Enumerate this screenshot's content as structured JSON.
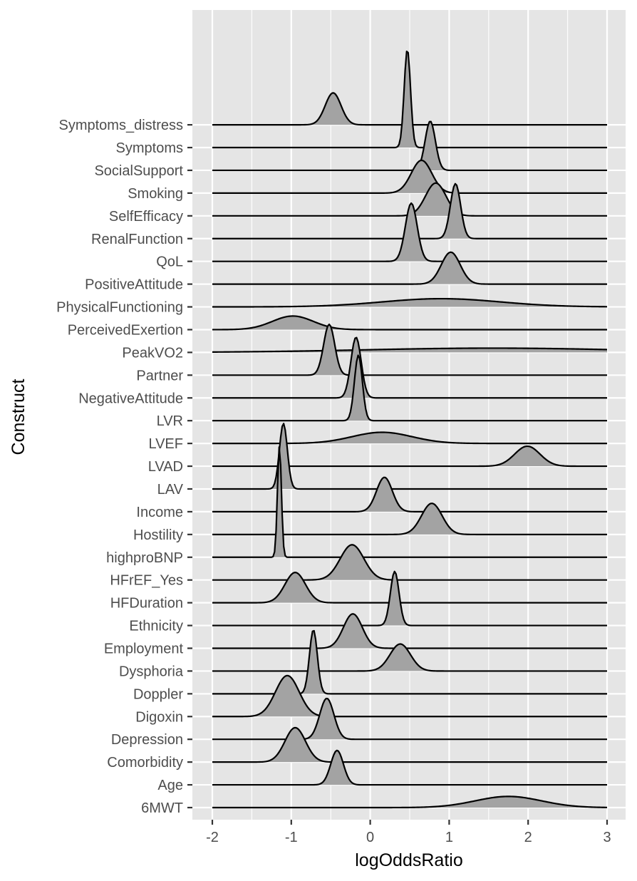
{
  "chart_data": {
    "type": "ridgeline",
    "xlabel": "logOddsRatio",
    "ylabel": "Construct",
    "xlim": [
      -2,
      3
    ],
    "x_ticks": [
      "-2",
      "-1",
      "0",
      "1",
      "2",
      "3"
    ],
    "grid": true,
    "panel_background": "#e5e5e5",
    "fill_color": "#a3a3a3",
    "categories": [
      "6MWT",
      "Age",
      "Comorbidity",
      "Depression",
      "Digoxin",
      "Doppler",
      "Dysphoria",
      "Employment",
      "Ethnicity",
      "HFDuration",
      "HFrEF_Yes",
      "highproBNP",
      "Hostility",
      "Income",
      "LAV",
      "LVAD",
      "LVEF",
      "LVR",
      "NegativeAttitude",
      "Partner",
      "PeakVO2",
      "PerceivedExertion",
      "PhysicalFunctioning",
      "PositiveAttitude",
      "QoL",
      "RenalFunction",
      "SelfEfficacy",
      "Smoking",
      "SocialSupport",
      "Symptoms",
      "Symptoms_distress"
    ],
    "series": [
      {
        "label": "6MWT",
        "mean": 1.75,
        "sd": 0.42,
        "peak": 0.68
      },
      {
        "label": "Age",
        "mean": -0.42,
        "sd": 0.08,
        "peak": 2.1
      },
      {
        "label": "Comorbidity",
        "mean": -0.95,
        "sd": 0.13,
        "peak": 2.1
      },
      {
        "label": "Depression",
        "mean": -0.55,
        "sd": 0.09,
        "peak": 2.5
      },
      {
        "label": "Digoxin",
        "mean": -1.05,
        "sd": 0.15,
        "peak": 2.5
      },
      {
        "label": "Doppler",
        "mean": -0.72,
        "sd": 0.05,
        "peak": 3.9
      },
      {
        "label": "Dysphoria",
        "mean": 0.38,
        "sd": 0.13,
        "peak": 1.65
      },
      {
        "label": "Employment",
        "mean": -0.22,
        "sd": 0.12,
        "peak": 2.1
      },
      {
        "label": "Ethnicity",
        "mean": 0.31,
        "sd": 0.055,
        "peak": 3.3
      },
      {
        "label": "HFDuration",
        "mean": -0.95,
        "sd": 0.13,
        "peak": 1.85
      },
      {
        "label": "HFrEF_Yes",
        "mean": -0.23,
        "sd": 0.15,
        "peak": 2.15
      },
      {
        "label": "highproBNP",
        "mean": -1.15,
        "sd": 0.025,
        "peak": 6.8
      },
      {
        "label": "Hostility",
        "mean": 0.78,
        "sd": 0.13,
        "peak": 1.9
      },
      {
        "label": "Income",
        "mean": 0.18,
        "sd": 0.1,
        "peak": 2.1
      },
      {
        "label": "LAV",
        "mean": -1.1,
        "sd": 0.05,
        "peak": 4.0
      },
      {
        "label": "LVAD",
        "mean": 1.99,
        "sd": 0.16,
        "peak": 1.22
      },
      {
        "label": "LVEF",
        "mean": 0.15,
        "sd": 0.38,
        "peak": 0.68
      },
      {
        "label": "LVR",
        "mean": -0.15,
        "sd": 0.05,
        "peak": 4.0
      },
      {
        "label": "NegativeAttitude",
        "mean": -0.18,
        "sd": 0.065,
        "peak": 3.7
      },
      {
        "label": "Partner",
        "mean": -0.52,
        "sd": 0.07,
        "peak": 3.1
      },
      {
        "label": "PeakVO2",
        "mean": 1.55,
        "sd": 1.6,
        "peak": 0.26
      },
      {
        "label": "PerceivedExertion",
        "mean": -0.98,
        "sd": 0.26,
        "peak": 0.83
      },
      {
        "label": "PhysicalFunctioning",
        "mean": 0.9,
        "sd": 0.75,
        "peak": 0.5
      },
      {
        "label": "PositiveAttitude",
        "mean": 1.02,
        "sd": 0.12,
        "peak": 1.95
      },
      {
        "label": "QoL",
        "mean": 0.52,
        "sd": 0.075,
        "peak": 3.55
      },
      {
        "label": "RenalFunction",
        "mean": 1.08,
        "sd": 0.065,
        "peak": 3.35
      },
      {
        "label": "SelfEfficacy",
        "mean": 0.83,
        "sd": 0.13,
        "peak": 2.0
      },
      {
        "label": "Smoking",
        "mean": 0.65,
        "sd": 0.13,
        "peak": 2.0
      },
      {
        "label": "SocialSupport",
        "mean": 0.76,
        "sd": 0.065,
        "peak": 3.0
      },
      {
        "label": "Symptoms",
        "mean": 0.47,
        "sd": 0.04,
        "peak": 6.0
      },
      {
        "label": "Symptoms_distress",
        "mean": -0.47,
        "sd": 0.1,
        "peak": 1.95
      }
    ]
  }
}
